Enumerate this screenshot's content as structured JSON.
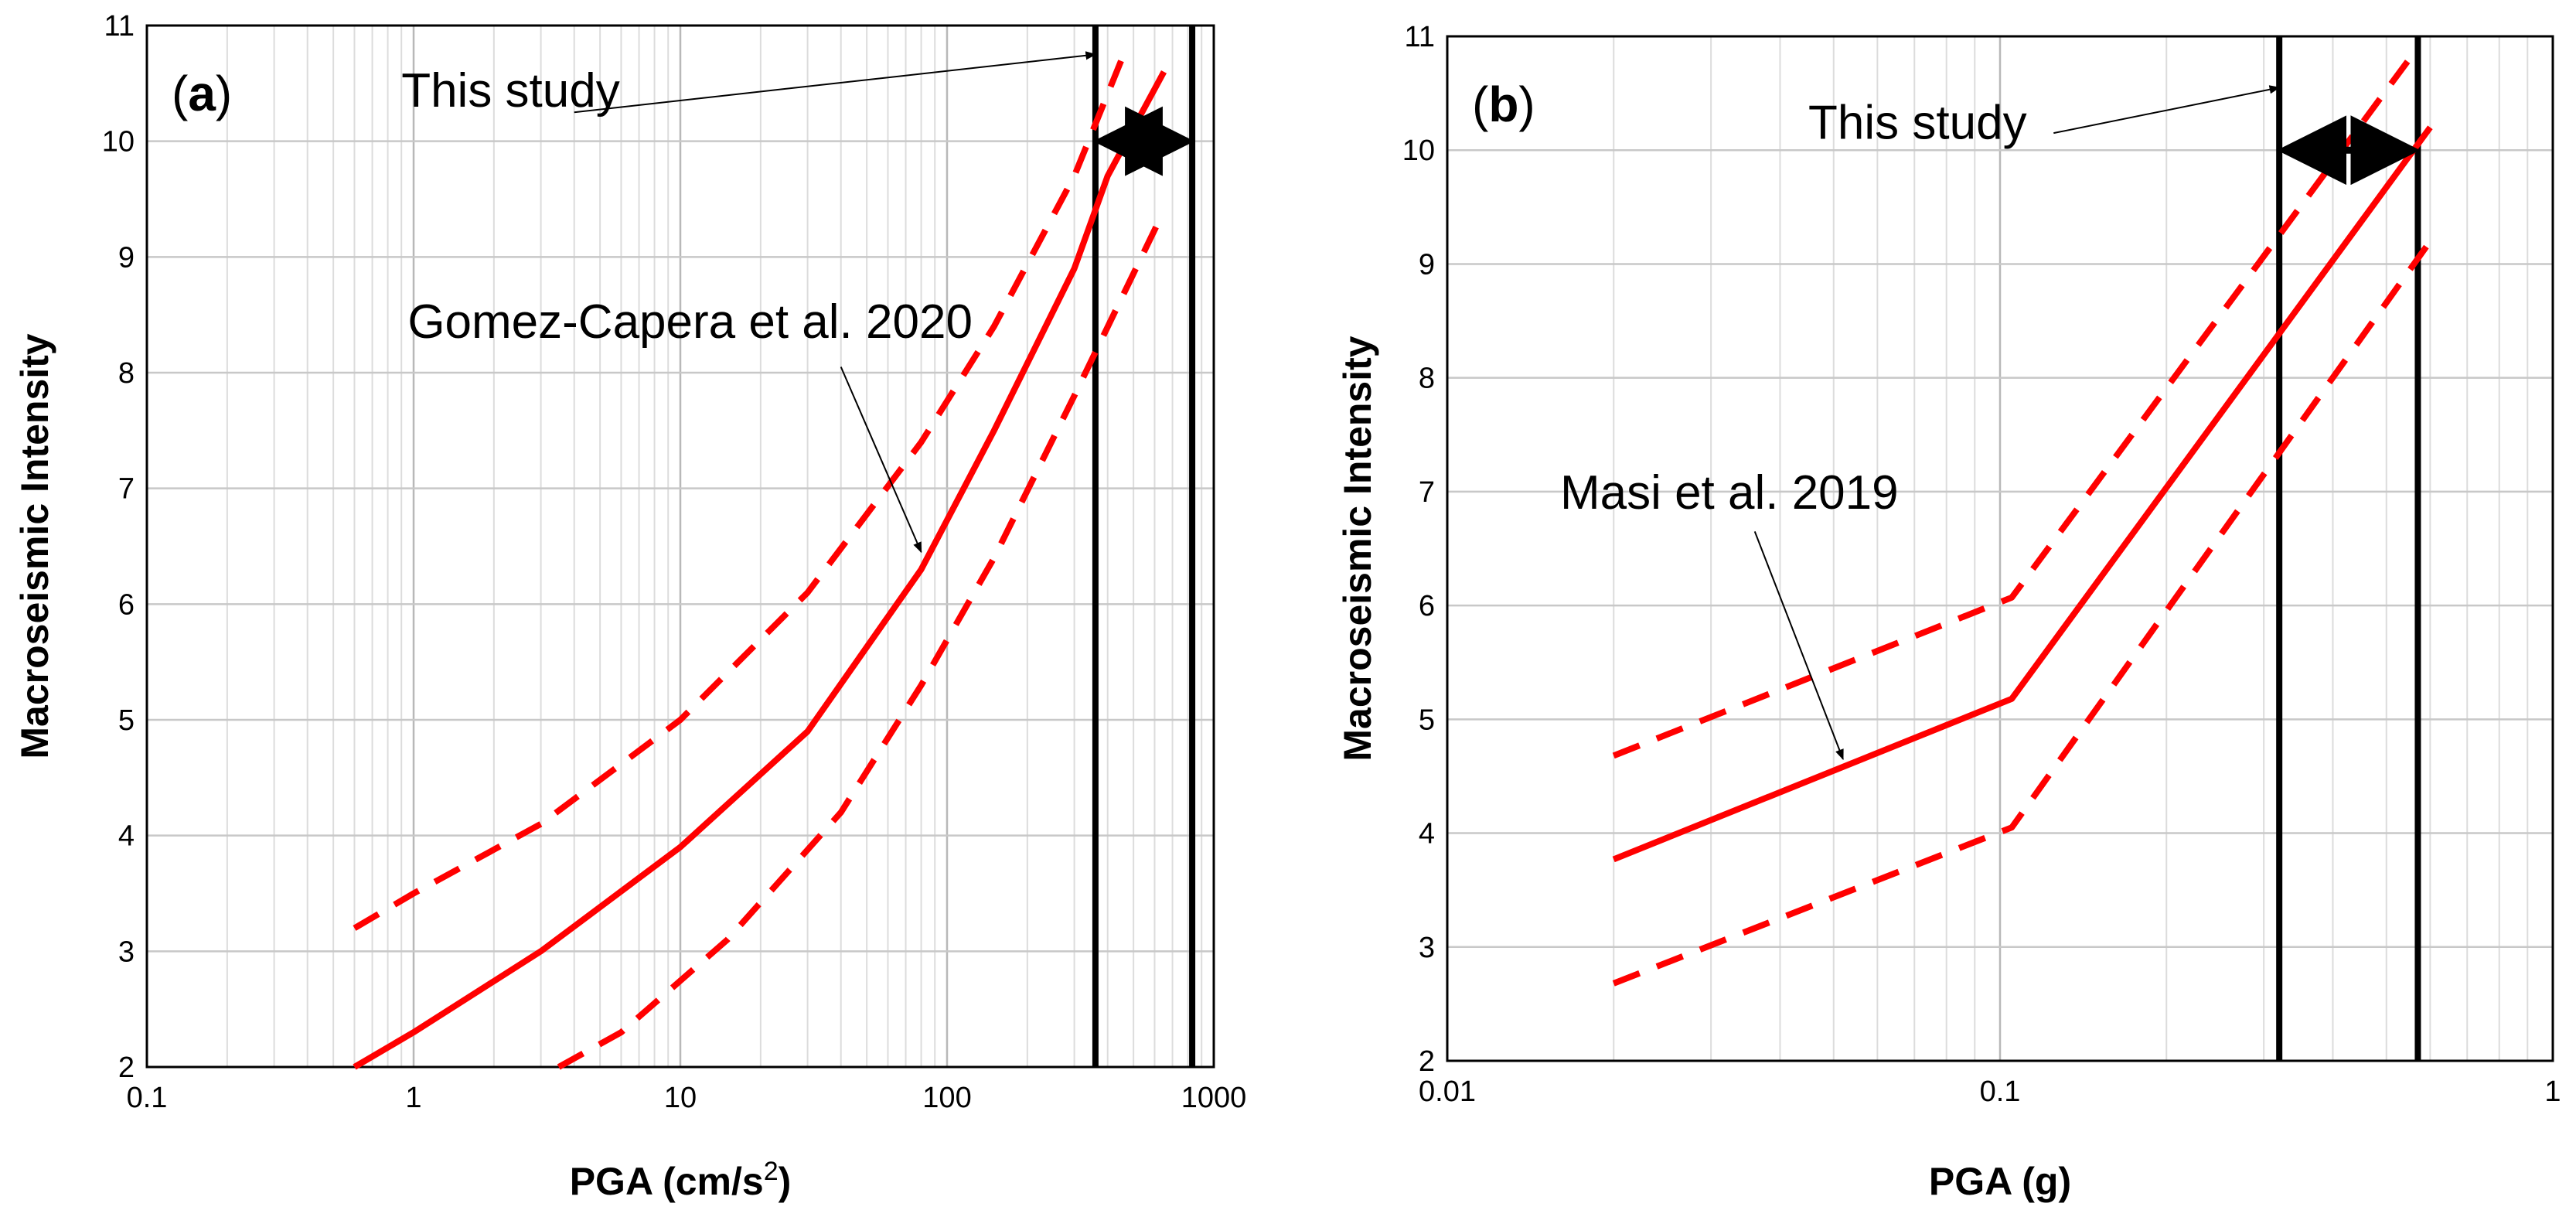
{
  "chart_data": [
    {
      "type": "line",
      "panel": "a",
      "panel_label": "a",
      "xlabel": "PGA (cm/s",
      "xlabel_sup": "2",
      "xlabel_close": ")",
      "ylabel": "Macroseismic Intensity",
      "x_scale": "log",
      "xlim": [
        0.1,
        1000
      ],
      "ylim": [
        2,
        11
      ],
      "grid": true,
      "x_ticks": [
        "0.1",
        "1",
        "10",
        "100",
        "1000"
      ],
      "y_ticks": [
        "2",
        "3",
        "4",
        "5",
        "6",
        "7",
        "8",
        "9",
        "10",
        "11"
      ],
      "series": [
        {
          "style": "solid",
          "color": "#ff0000",
          "points": [
            [
              0.6,
              2.0
            ],
            [
              1,
              2.3
            ],
            [
              3,
              3.0
            ],
            [
              10,
              3.9
            ],
            [
              30,
              4.9
            ],
            [
              80,
              6.3
            ],
            [
              150,
              7.5
            ],
            [
              300,
              8.9
            ],
            [
              400,
              9.7
            ],
            [
              650,
              10.6
            ]
          ]
        },
        {
          "style": "dashed",
          "color": "#ff0000",
          "points": [
            [
              0.6,
              3.2
            ],
            [
              1,
              3.5
            ],
            [
              3,
              4.1
            ],
            [
              10,
              5.0
            ],
            [
              30,
              6.1
            ],
            [
              80,
              7.4
            ],
            [
              150,
              8.4
            ],
            [
              300,
              9.7
            ],
            [
              450,
              10.7
            ]
          ]
        },
        {
          "style": "dashed",
          "color": "#ff0000",
          "points": [
            [
              3.5,
              2.0
            ],
            [
              6,
              2.3
            ],
            [
              15,
              3.1
            ],
            [
              40,
              4.2
            ],
            [
              80,
              5.3
            ],
            [
              150,
              6.4
            ],
            [
              300,
              7.8
            ],
            [
              650,
              9.4
            ]
          ]
        }
      ],
      "vlines": [
        360,
        830
      ],
      "range_arrow": {
        "x1": 360,
        "x2": 830,
        "y": 10.0
      },
      "annotations": [
        {
          "text": "This study",
          "text_pos": [
            0.9,
            10.3
          ],
          "arrow_from": [
            4,
            10.25
          ],
          "arrow_to": [
            360,
            10.75
          ]
        },
        {
          "text": "Gomez-Capera et al. 2020",
          "text_pos": [
            0.95,
            8.3
          ],
          "arrow_from": [
            40,
            8.05
          ],
          "arrow_to": [
            80,
            6.45
          ]
        }
      ]
    },
    {
      "type": "line",
      "panel": "b",
      "panel_label": "b",
      "xlabel": "PGA (g)",
      "ylabel": "Macroseismic Intensity",
      "x_scale": "log",
      "xlim": [
        0.01,
        1
      ],
      "ylim": [
        2,
        11
      ],
      "grid": true,
      "x_ticks": [
        "0.01",
        "0.1",
        "1"
      ],
      "y_ticks": [
        "2",
        "3",
        "4",
        "5",
        "6",
        "7",
        "8",
        "9",
        "10",
        "11"
      ],
      "series": [
        {
          "style": "solid",
          "color": "#ff0000",
          "points": [
            [
              0.02,
              3.77
            ],
            [
              0.105,
              5.18
            ],
            [
              0.6,
              10.2
            ]
          ]
        },
        {
          "style": "dashed",
          "color": "#ff0000",
          "points": [
            [
              0.02,
              4.68
            ],
            [
              0.105,
              6.07
            ],
            [
              0.55,
              10.8
            ]
          ]
        },
        {
          "style": "dashed",
          "color": "#ff0000",
          "points": [
            [
              0.02,
              2.68
            ],
            [
              0.105,
              4.05
            ],
            [
              0.6,
              9.2
            ]
          ]
        }
      ],
      "vlines": [
        0.32,
        0.57
      ],
      "range_arrow": {
        "x1": 0.32,
        "x2": 0.57,
        "y": 10.0
      },
      "annotations": [
        {
          "text": "This study",
          "text_pos": [
            0.045,
            10.1
          ],
          "arrow_from": [
            0.125,
            10.15
          ],
          "arrow_to": [
            0.32,
            10.55
          ]
        },
        {
          "text": "Masi et al. 2019",
          "text_pos": [
            0.016,
            6.85
          ],
          "arrow_from": [
            0.036,
            6.65
          ],
          "arrow_to": [
            0.052,
            4.65
          ]
        }
      ]
    }
  ]
}
